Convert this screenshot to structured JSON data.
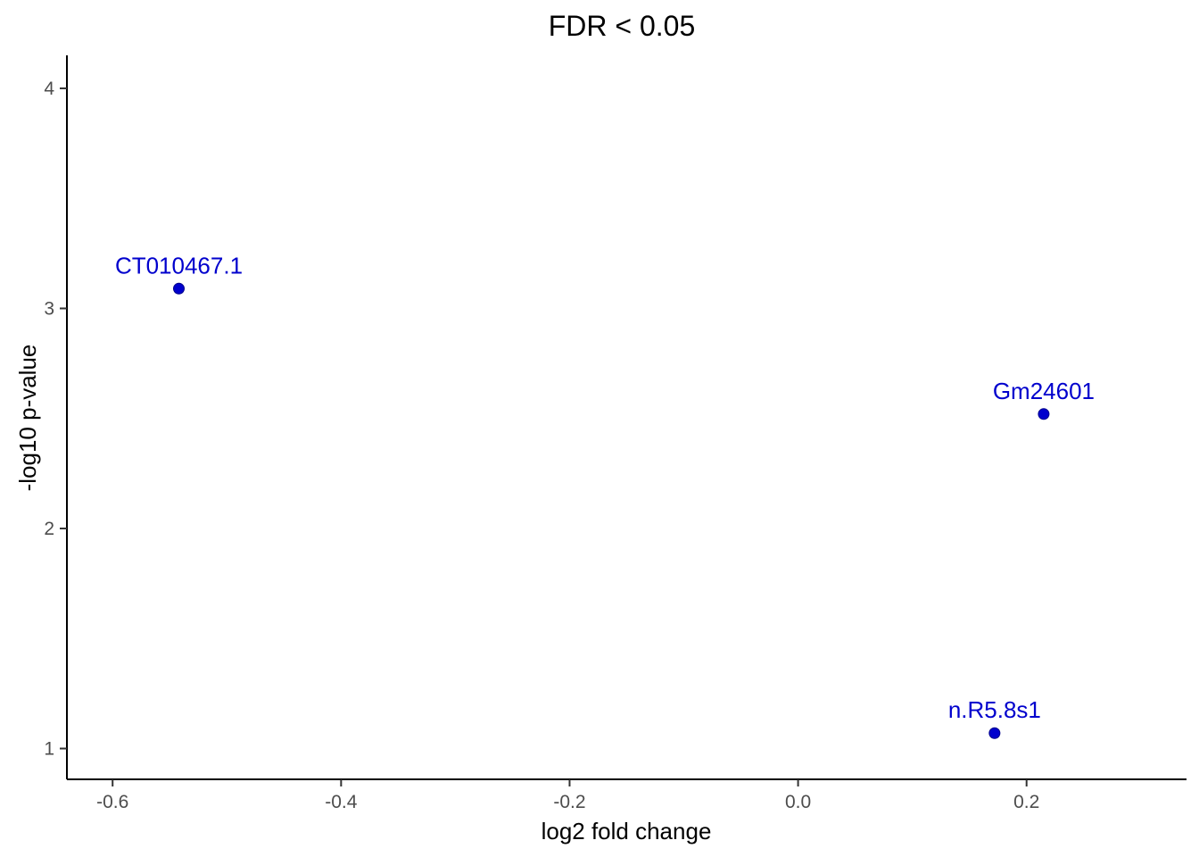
{
  "chart_data": {
    "type": "scatter",
    "title": "FDR  < 0.05",
    "xlabel": "log2 fold change",
    "ylabel": "-log10 p-value",
    "xlim": [
      -0.64,
      0.34
    ],
    "ylim": [
      0.86,
      4.15
    ],
    "xticks": [
      -0.6,
      -0.4,
      -0.2,
      0.0,
      0.2
    ],
    "xtick_labels": [
      "-0.6",
      "-0.4",
      "-0.2",
      "0.0",
      "0.2"
    ],
    "yticks": [
      1,
      2,
      3,
      4
    ],
    "ytick_labels": [
      "1",
      "2",
      "3",
      "4"
    ],
    "grid": false,
    "point_color": "#0000CD",
    "points": [
      {
        "label": "CT010467.1",
        "x": -0.542,
        "y": 3.09
      },
      {
        "label": "Gm24601",
        "x": 0.215,
        "y": 2.52
      },
      {
        "label": "n.R5.8s1",
        "x": 0.172,
        "y": 1.07
      }
    ]
  }
}
